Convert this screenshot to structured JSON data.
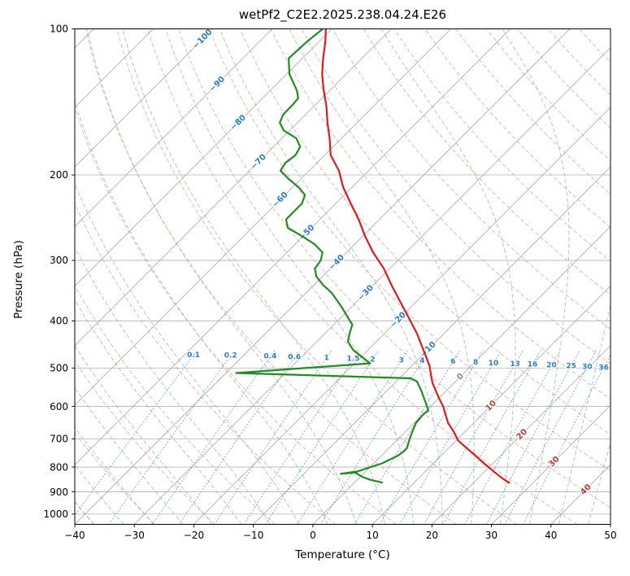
{
  "title": "wetPf2_C2E2.2025.238.04.24.E26",
  "axes": {
    "x_label": "Temperature (°C)",
    "y_label": "Pressure (hPa)",
    "x_ticks": [
      -40,
      -30,
      -20,
      -10,
      0,
      10,
      20,
      30,
      40,
      50
    ],
    "y_ticks": [
      100,
      200,
      300,
      400,
      500,
      600,
      700,
      800,
      900,
      1000
    ],
    "x_range_bottom_c": [
      -40,
      50
    ],
    "pressure_range_hpa": [
      100,
      1050
    ],
    "y_scale": "log",
    "skew": "45deg"
  },
  "chart_data": {
    "type": "line",
    "chart_kind": "skew-t-log-p sounding",
    "title": "wetPf2_C2E2.2025.238.04.24.E26",
    "xlabel": "Temperature (°C)",
    "ylabel": "Pressure (hPa)",
    "series": [
      {
        "name": "temperature",
        "color": "#dd1c1c",
        "pressure_hpa": [
          100,
          106,
          115,
          124,
          134,
          144,
          156,
          168,
          182,
          196,
          212,
          229,
          247,
          268,
          289,
          312,
          337,
          363,
          393,
          424,
          459,
          495,
          536,
          577,
          600,
          624,
          649,
          675,
          705,
          731,
          757,
          786,
          818,
          845,
          862
        ],
        "value_c": [
          -81,
          -79,
          -76.5,
          -74,
          -71,
          -68,
          -65,
          -62,
          -59,
          -55,
          -51.5,
          -47.5,
          -43.5,
          -39.5,
          -35.5,
          -31,
          -27,
          -23,
          -18.7,
          -14.6,
          -10.7,
          -7,
          -3.7,
          0,
          2.1,
          3.9,
          5.7,
          8,
          10.3,
          13,
          15.7,
          18.5,
          21.6,
          24.2,
          26
        ]
      },
      {
        "name": "dewpoint",
        "color": "#228b22",
        "pressure_hpa": [
          100,
          106,
          115,
          124,
          134,
          139,
          144,
          150,
          156,
          162,
          168,
          175,
          182,
          189,
          196,
          204,
          212,
          220,
          229,
          238,
          247,
          257,
          268,
          278,
          289,
          300,
          312,
          324,
          337,
          350,
          363,
          376,
          393,
          407,
          424,
          441,
          459,
          477,
          489,
          512,
          525,
          533,
          556,
          577,
          600,
          612,
          624,
          649,
          675,
          705,
          731,
          744,
          757,
          771,
          786,
          801,
          817,
          826,
          821,
          838,
          850,
          861
        ],
        "value_c": [
          -81.5,
          -82,
          -82.3,
          -79.5,
          -75.5,
          -74,
          -73.8,
          -73.8,
          -73,
          -71,
          -67.6,
          -65.5,
          -64.9,
          -65.3,
          -64.8,
          -62,
          -59,
          -56.6,
          -55.7,
          -55.7,
          -55.7,
          -54,
          -50,
          -46.7,
          -44,
          -43,
          -42.6,
          -41,
          -38.5,
          -35.7,
          -33.5,
          -31.4,
          -28.9,
          -26.9,
          -25.9,
          -24.8,
          -22.5,
          -19.4,
          -17.4,
          -38.3,
          -8.1,
          -6.5,
          -4.3,
          -2.5,
          -0.6,
          0.3,
          0.1,
          0.3,
          1.1,
          2.1,
          3.0,
          3.0,
          2.8,
          2.1,
          1.4,
          0.0,
          -1.4,
          -3.8,
          -1.6,
          0.3,
          2.2,
          4.6
        ]
      }
    ],
    "background": {
      "isobars_hpa": [
        100,
        200,
        300,
        400,
        500,
        600,
        700,
        800,
        900,
        1000
      ],
      "isotherms_c": {
        "start": -150,
        "end": 50,
        "step": 10
      },
      "isotherm_labels": [
        {
          "t": -100,
          "p": 105
        },
        {
          "t": -90,
          "p": 130
        },
        {
          "t": -80,
          "p": 156
        },
        {
          "t": -70,
          "p": 188
        },
        {
          "t": -60,
          "p": 225
        },
        {
          "t": -50,
          "p": 263
        },
        {
          "t": -40,
          "p": 303
        },
        {
          "t": -30,
          "p": 350
        },
        {
          "t": -20,
          "p": 398
        },
        {
          "t": -10,
          "p": 458
        },
        {
          "t": 0,
          "p": 521
        },
        {
          "t": 10,
          "p": 598
        },
        {
          "t": 20,
          "p": 685
        },
        {
          "t": 30,
          "p": 780
        },
        {
          "t": 40,
          "p": 890
        }
      ],
      "dry_adiabats_theta_c": {
        "start": -40,
        "end": 250,
        "step": 10
      },
      "moist_adiabats_thetaw_c": {
        "start": -40,
        "end": 45,
        "step": 5
      },
      "mixing_ratio_g_kg": [
        0.1,
        0.2,
        0.4,
        0.6,
        1,
        1.5,
        2,
        3,
        4,
        6,
        8,
        10,
        13,
        16,
        20,
        25,
        30,
        36
      ]
    },
    "colors": {
      "temperature_line": "#dd1c1c",
      "dewpoint_line": "#228b22",
      "isotherm": "#a6a6a6",
      "isobar": "#b3b3b3",
      "dry_adiabat": "#ef9a8f",
      "moist_adiabat": "#8fbf8f",
      "mixing_ratio": "#5b9bd5",
      "isotherm_label_negative": "#2d7cc1",
      "isotherm_label_zero": "#8a8a8a",
      "isotherm_label_positive": "#c23b3b",
      "mixing_ratio_label": "#2d7cc1",
      "axis_text": "#000000"
    },
    "legend": "none",
    "grid": true
  }
}
